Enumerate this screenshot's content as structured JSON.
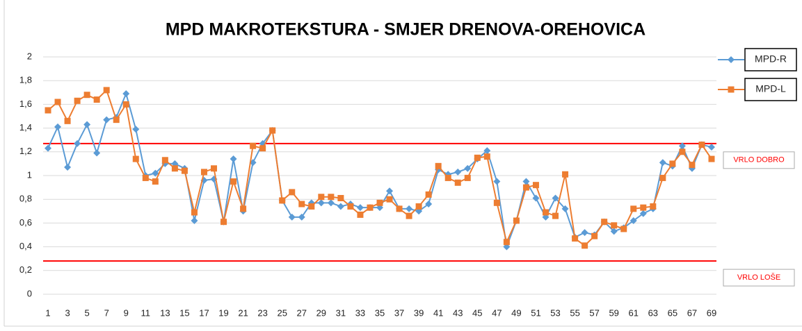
{
  "chart_data": {
    "type": "line",
    "title": "MPD MAKROTEKSTURA - SMJER DRENOVA-OREHOVICA",
    "categories": [
      1,
      null,
      3,
      null,
      5,
      null,
      7,
      null,
      9,
      null,
      11,
      null,
      13,
      null,
      15,
      null,
      17,
      null,
      19,
      null,
      21,
      null,
      23,
      null,
      25,
      null,
      27,
      null,
      29,
      null,
      31,
      null,
      33,
      null,
      35,
      null,
      37,
      null,
      39,
      null,
      41,
      null,
      43,
      null,
      45,
      null,
      47,
      null,
      49,
      null,
      51,
      null,
      53,
      null,
      55,
      null,
      57,
      null,
      59,
      null,
      61,
      null,
      63,
      null,
      65,
      null,
      67,
      null,
      69
    ],
    "series": [
      {
        "name": "MPD-R",
        "color": "#5b9bd5",
        "marker": "diamond",
        "values": [
          1.23,
          1.41,
          1.07,
          1.27,
          1.43,
          1.19,
          1.47,
          1.49,
          1.69,
          1.39,
          1.0,
          1.02,
          1.1,
          1.1,
          1.06,
          0.62,
          0.96,
          0.97,
          0.61,
          1.14,
          0.7,
          1.11,
          1.27,
          1.38,
          0.79,
          0.65,
          0.65,
          0.77,
          0.77,
          0.77,
          0.74,
          0.76,
          0.73,
          0.73,
          0.73,
          0.87,
          0.72,
          0.72,
          0.7,
          0.76,
          1.05,
          1.01,
          1.03,
          1.06,
          1.14,
          1.21,
          0.95,
          0.4,
          0.62,
          0.95,
          0.81,
          0.65,
          0.81,
          0.72,
          0.48,
          0.52,
          0.5,
          0.61,
          0.53,
          0.56,
          0.62,
          0.68,
          0.72,
          1.11,
          1.08,
          1.25,
          1.06,
          1.26,
          1.24
        ]
      },
      {
        "name": "MPD-L",
        "color": "#ed7d31",
        "marker": "square",
        "values": [
          1.55,
          1.62,
          1.46,
          1.63,
          1.68,
          1.64,
          1.72,
          1.47,
          1.6,
          1.14,
          0.98,
          0.95,
          1.13,
          1.06,
          1.04,
          0.69,
          1.03,
          1.06,
          0.61,
          0.95,
          0.72,
          1.25,
          1.23,
          1.38,
          0.79,
          0.86,
          0.76,
          0.74,
          0.82,
          0.82,
          0.81,
          0.74,
          0.67,
          0.73,
          0.77,
          0.8,
          0.72,
          0.66,
          0.74,
          0.84,
          1.08,
          0.98,
          0.94,
          0.98,
          1.15,
          1.16,
          0.77,
          0.44,
          0.62,
          0.9,
          0.92,
          0.69,
          0.66,
          1.01,
          0.47,
          0.41,
          0.49,
          0.61,
          0.58,
          0.55,
          0.72,
          0.73,
          0.74,
          0.98,
          1.1,
          1.2,
          1.09,
          1.26,
          1.14
        ]
      }
    ],
    "reference_lines": [
      {
        "value": 1.27,
        "label": "VRLO DOBRO",
        "color": "#ff0000"
      },
      {
        "value": 0.28,
        "label": "VRLO LOŠE",
        "color": "#ff0000"
      }
    ],
    "ylim": [
      0,
      2
    ],
    "yticks": [
      0,
      {
        "value": 0.2,
        "label": "0,2"
      },
      {
        "value": 0.4,
        "label": "0,4"
      },
      {
        "value": 0.6,
        "label": "0,6"
      },
      {
        "value": 0.8,
        "label": "0,8"
      },
      1,
      {
        "value": 1.2,
        "label": "1,2"
      },
      {
        "value": 1.4,
        "label": "1,4"
      },
      {
        "value": 1.6,
        "label": "1,6"
      },
      {
        "value": 1.8,
        "label": "1,8"
      },
      2
    ],
    "grid": true
  }
}
